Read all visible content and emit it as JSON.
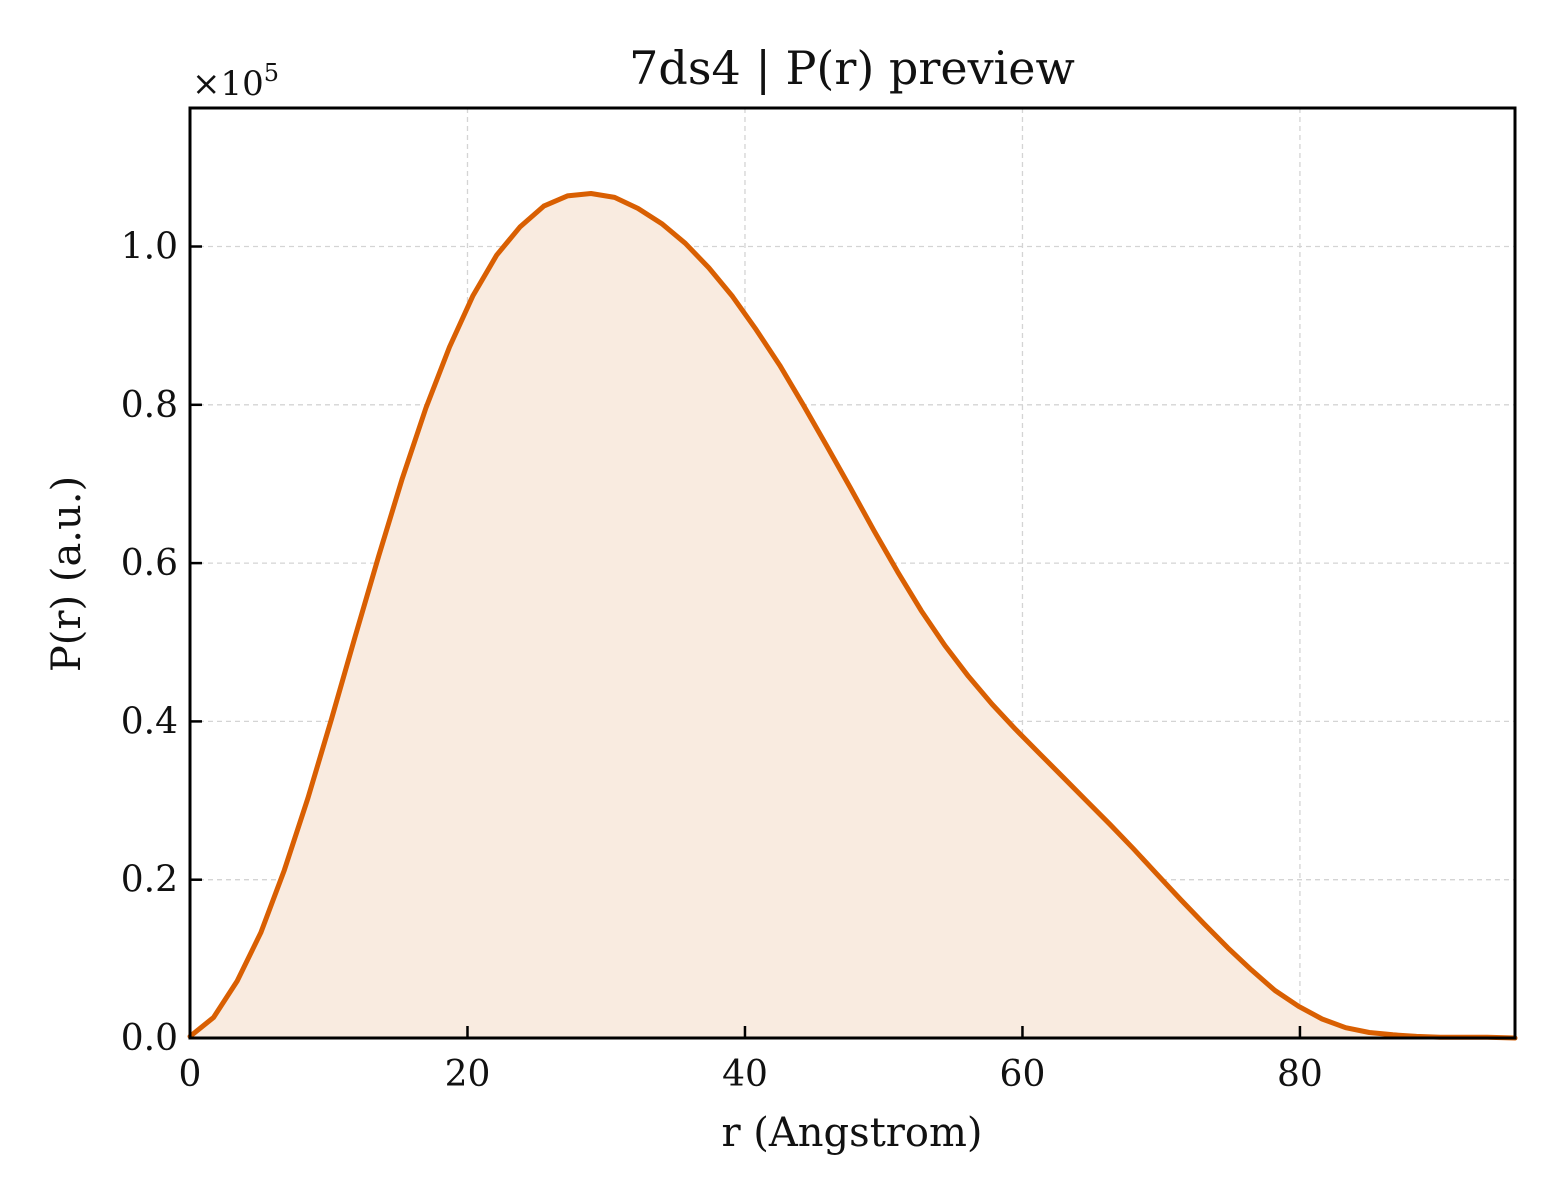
{
  "chart_data": {
    "type": "area",
    "title": "7ds4 | P(r) preview",
    "xlabel": "r (Angstrom)",
    "ylabel": "P(r) (a.u.)",
    "y_multiplier": "×10",
    "y_multiplier_exp": "5",
    "xlim": [
      0,
      95.5
    ],
    "ylim": [
      0,
      1.175
    ],
    "x_ticks": [
      0,
      20,
      40,
      60,
      80
    ],
    "x_tick_labels": [
      "0",
      "20",
      "40",
      "60",
      "80"
    ],
    "y_ticks": [
      0,
      0.2,
      0.4,
      0.6,
      0.8,
      1.0
    ],
    "y_tick_labels": [
      "0.0",
      "0.2",
      "0.4",
      "0.6",
      "0.8",
      "1.0"
    ],
    "grid": true,
    "line_color": "#d95f02",
    "fill_color": "#f9ebe0",
    "series": [
      {
        "x": [
          0,
          1.7,
          3.4,
          5.1,
          6.8,
          8.5,
          10.2,
          11.9,
          13.6,
          15.3,
          17.0,
          18.7,
          20.4,
          22.1,
          23.8,
          25.5,
          27.2,
          28.9,
          30.6,
          32.3,
          34.0,
          35.7,
          37.4,
          39.1,
          40.8,
          42.5,
          44.2,
          45.9,
          47.6,
          49.3,
          51.0,
          52.7,
          54.4,
          56.1,
          57.8,
          59.5,
          61.2,
          62.9,
          64.6,
          66.3,
          68.0,
          69.7,
          71.4,
          73.1,
          74.8,
          76.5,
          78.2,
          79.9,
          81.6,
          83.3,
          85.0,
          86.7,
          88.4,
          90.1,
          91.8,
          93.5,
          95.5
        ],
        "y": [
          0.002,
          0.026,
          0.072,
          0.133,
          0.212,
          0.303,
          0.403,
          0.507,
          0.609,
          0.707,
          0.796,
          0.873,
          0.938,
          0.989,
          1.025,
          1.051,
          1.064,
          1.067,
          1.062,
          1.048,
          1.029,
          1.004,
          0.973,
          0.937,
          0.895,
          0.85,
          0.8,
          0.748,
          0.695,
          0.641,
          0.589,
          0.54,
          0.496,
          0.457,
          0.422,
          0.39,
          0.36,
          0.33,
          0.3,
          0.27,
          0.239,
          0.207,
          0.175,
          0.144,
          0.114,
          0.086,
          0.06,
          0.04,
          0.024,
          0.013,
          0.007,
          0.004,
          0.002,
          0.001,
          0.001,
          0.001,
          0.0
        ]
      }
    ]
  }
}
